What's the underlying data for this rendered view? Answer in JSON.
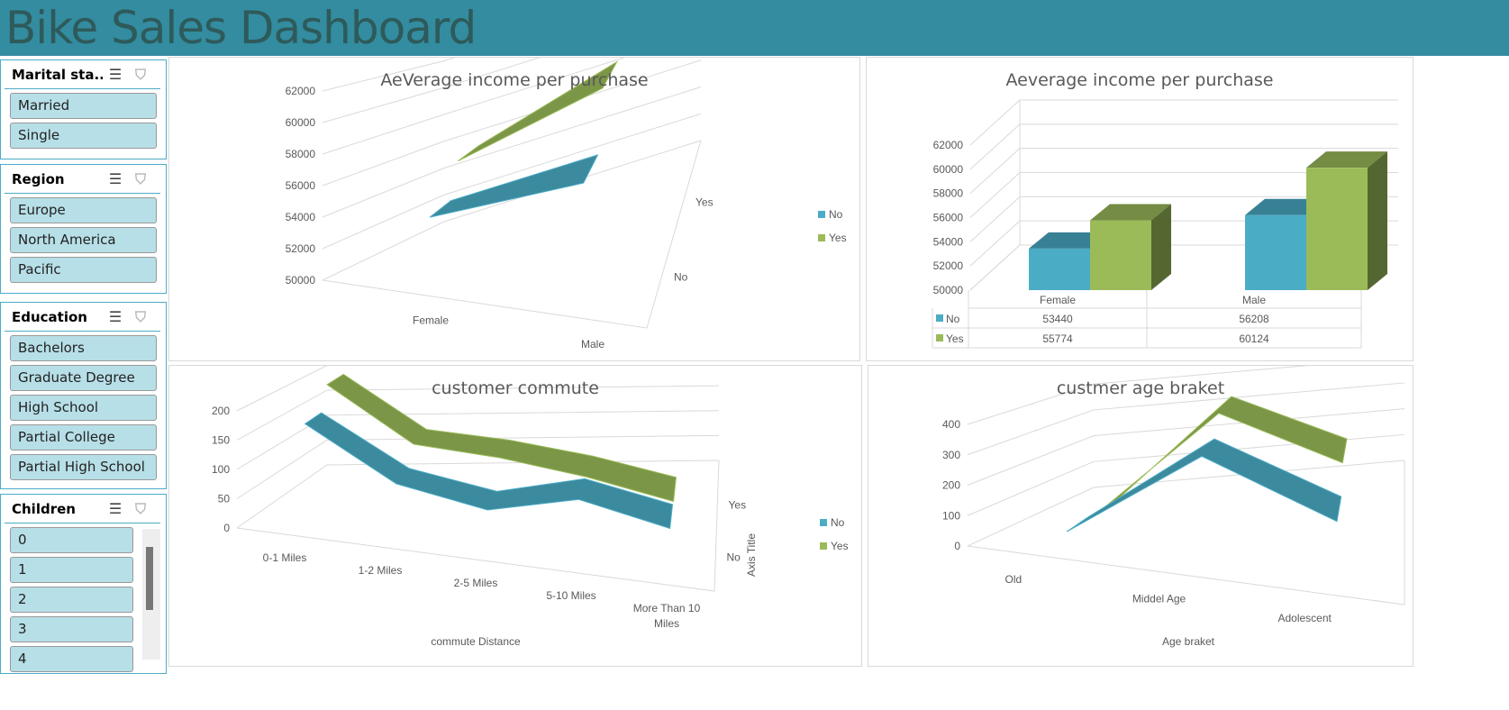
{
  "title": "Bike Sales Dashboard",
  "slicers": [
    {
      "title": "Marital sta...",
      "items": [
        "Married",
        "Single"
      ]
    },
    {
      "title": "Region",
      "items": [
        "Europe",
        "North America",
        "Pacific"
      ]
    },
    {
      "title": "Education",
      "items": [
        "Bachelors",
        "Graduate Degree",
        "High School",
        "Partial College",
        "Partial High School"
      ]
    },
    {
      "title": "Children",
      "items": [
        "0",
        "1",
        "2",
        "3",
        "4"
      ]
    }
  ],
  "colors": {
    "no": "#4bacc6",
    "yes": "#9bbb59"
  },
  "chart_data": [
    {
      "type": "line",
      "title": "AeVerage income per purchase",
      "categories": [
        "Female",
        "Male"
      ],
      "series": [
        {
          "name": "No",
          "values": [
            53440,
            56208
          ]
        },
        {
          "name": "Yes",
          "values": [
            55774,
            60124
          ]
        }
      ],
      "yticks": [
        "50000",
        "52000",
        "54000",
        "56000",
        "58000",
        "60000",
        "62000"
      ],
      "ylim": [
        50000,
        62000
      ],
      "depth_labels": [
        "No",
        "Yes"
      ],
      "legend": [
        "No",
        "Yes"
      ]
    },
    {
      "type": "bar",
      "title": "Aeverage income per purchase",
      "categories": [
        "Female",
        "Male"
      ],
      "series": [
        {
          "name": "No",
          "values": [
            53440,
            56208
          ]
        },
        {
          "name": "Yes",
          "values": [
            55774,
            60124
          ]
        }
      ],
      "yticks": [
        "50000",
        "52000",
        "54000",
        "56000",
        "58000",
        "60000",
        "62000"
      ],
      "ylim": [
        50000,
        62000
      ],
      "table": {
        "rows": [
          [
            "No",
            "53440",
            "56208"
          ],
          [
            "Yes",
            "55774",
            "60124"
          ]
        ]
      }
    },
    {
      "type": "line",
      "title": "customer  commute",
      "categories": [
        "0-1 Miles",
        "1-2 Miles",
        "2-5 Miles",
        "5-10 Miles",
        "More Than 10 Miles"
      ],
      "series": [
        {
          "name": "No",
          "values": [
            165,
            75,
            45,
            80,
            45
          ]
        },
        {
          "name": "Yes",
          "values": [
            210,
            110,
            95,
            70,
            35
          ]
        }
      ],
      "yticks": [
        "0",
        "50",
        "100",
        "150",
        "200"
      ],
      "ylim": [
        0,
        200
      ],
      "xlabel": "commute Distance",
      "zlabel": "Axis Title",
      "depth_labels": [
        "No",
        "Yes"
      ],
      "legend": [
        "No",
        "Yes"
      ]
    },
    {
      "type": "line",
      "title": "custmer age braket",
      "categories": [
        "Old",
        "Middel Age",
        "Adolescent"
      ],
      "series": [
        {
          "name": "No",
          "values": [
            20,
            320,
            140
          ]
        },
        {
          "name": "Yes",
          "values": [
            10,
            390,
            230
          ]
        }
      ],
      "yticks": [
        "0",
        "100",
        "200",
        "300",
        "400"
      ],
      "ylim": [
        0,
        400
      ],
      "xlabel": "Age braket",
      "legend": []
    }
  ]
}
